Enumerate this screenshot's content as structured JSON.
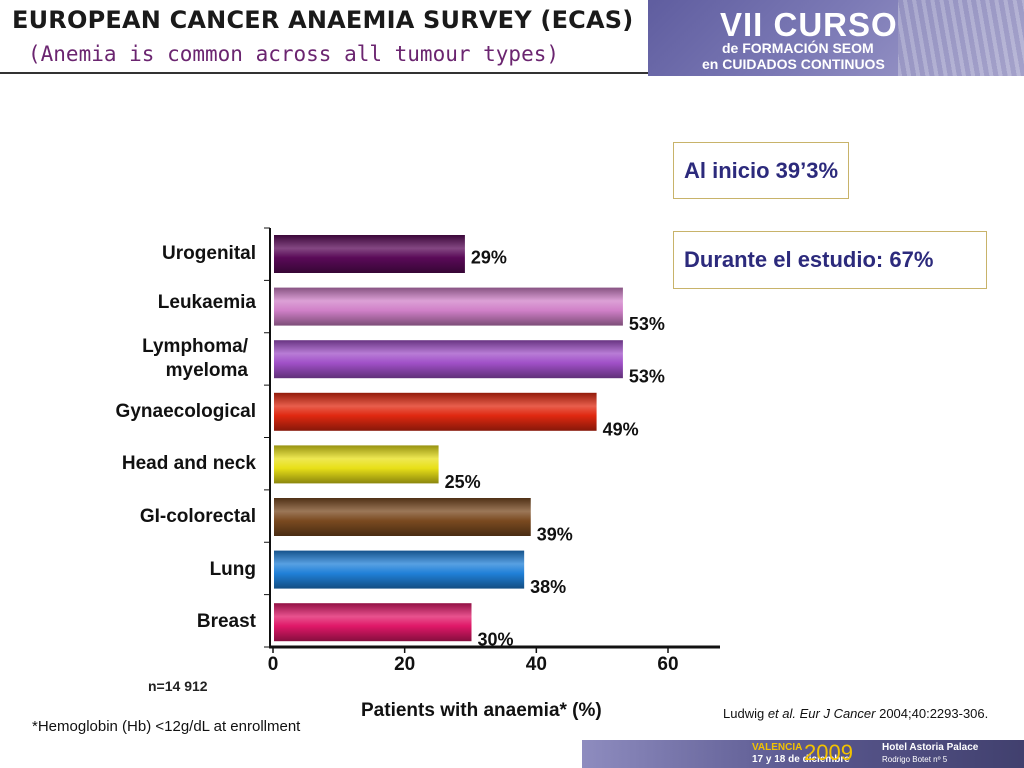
{
  "title": "EUROPEAN CANCER ANAEMIA SURVEY (ECAS)",
  "subtitle": "(Anemia is common across all tumour types)",
  "banner": {
    "line1": "VII CURSO",
    "line2": "de FORMACIÓN SEOM",
    "line3": "en CUIDADOS CONTINUOS"
  },
  "callouts": {
    "initial": "Al inicio 39’3%",
    "during": "Durante el estudio: 67%"
  },
  "n_label": "n=14 912",
  "footnote": "*Hemoglobin (Hb) <12g/dL at enrollment",
  "citation": {
    "authors": "Ludwig ",
    "etal": "et al.",
    "journal": " Eur J Cancer",
    "ref": " 2004;40:2293-306."
  },
  "footer": {
    "city": "VALENCIA",
    "dates": "17 y 18 de diciembre",
    "year": "2009",
    "hotel": "Hotel Astoria Palace",
    "address": "Rodrigo Botet nº 5"
  },
  "chart_data": {
    "type": "bar",
    "orientation": "horizontal",
    "categories": [
      "Urogenital",
      "Leukaemia",
      "Lymphoma/\nmyeloma",
      "Gynaecological",
      "Head and neck",
      "GI-colorectal",
      "Lung",
      "Breast"
    ],
    "values": [
      29,
      53,
      53,
      49,
      25,
      39,
      38,
      30
    ],
    "data_labels": [
      "29%",
      "53%",
      "53%",
      "49%",
      "25%",
      "39%",
      "38%",
      "30%"
    ],
    "colors": [
      "#5a0a58",
      "#d080c8",
      "#a050c8",
      "#e02810",
      "#e8e018",
      "#7a4a20",
      "#2080d8",
      "#e01868"
    ],
    "xlabel": "Patients with anaemia* (%)",
    "xticks": [
      "0",
      "20",
      "40",
      "60"
    ],
    "xlim": [
      0,
      67
    ],
    "grid": false,
    "legend": "none"
  }
}
